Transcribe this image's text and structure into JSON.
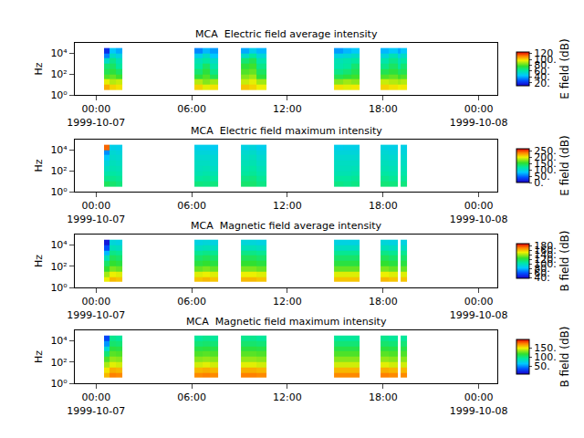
{
  "chart_data": [
    {
      "type": "heatmap",
      "title": "MCA  Electric field average intensity",
      "y_label": "Hz",
      "log": "y",
      "xlim": [
        "1999-10-06 22:40",
        "1999-10-08 01:10"
      ],
      "xticks": [
        {
          "value": "1999-10-07 00:00",
          "label": "00:00\n1999-10-07"
        },
        {
          "value": "1999-10-07 06:00",
          "label": "06:00"
        },
        {
          "value": "1999-10-07 12:00",
          "label": "12:00"
        },
        {
          "value": "1999-10-07 18:00",
          "label": "18:00"
        },
        {
          "value": "1999-10-08 00:00",
          "label": "00:00\n1999-10-08"
        }
      ],
      "ylim": [
        1,
        100000
      ],
      "yticks": [
        {
          "value": 1,
          "label": "10⁰"
        },
        {
          "value": 100,
          "label": "10²"
        },
        {
          "value": 10000,
          "label": "10⁴"
        }
      ],
      "x": [
        "1999-10-07 00:30",
        "1999-10-07 00:50",
        "1999-10-07 01:15",
        "1999-10-07 01:40",
        "1999-10-07 06:10",
        "1999-10-07 06:40",
        "1999-10-07 07:10",
        "1999-10-07 07:40",
        "1999-10-07 09:05",
        "1999-10-07 09:35",
        "1999-10-07 10:05",
        "1999-10-07 10:40",
        "1999-10-07 14:55",
        "1999-10-07 15:30",
        "1999-10-07 16:00",
        "1999-10-07 16:30",
        "1999-10-07 17:50",
        "1999-10-07 18:20",
        "1999-10-07 18:55",
        "1999-10-07 19:05",
        "1999-10-07 19:30"
      ],
      "y": [
        3.2,
        10,
        32,
        100,
        320,
        1000,
        3200,
        10000,
        32000
      ],
      "z": [
        [
          105,
          100,
          98,
          null,
          100,
          95,
          98,
          null,
          102,
          100,
          96,
          null,
          98,
          95,
          97,
          null,
          100,
          98,
          96,
          97
        ],
        [
          95,
          90,
          92,
          null,
          90,
          85,
          88,
          null,
          92,
          95,
          88,
          null,
          85,
          88,
          86,
          null,
          92,
          90,
          88,
          90
        ],
        [
          80,
          82,
          78,
          null,
          75,
          80,
          72,
          null,
          85,
          88,
          75,
          null,
          72,
          75,
          78,
          null,
          80,
          82,
          78,
          80
        ],
        [
          72,
          75,
          70,
          null,
          68,
          75,
          65,
          null,
          80,
          82,
          70,
          null,
          65,
          68,
          72,
          null,
          72,
          75,
          70,
          72
        ],
        [
          68,
          70,
          62,
          null,
          62,
          70,
          60,
          null,
          75,
          78,
          65,
          null,
          60,
          62,
          68,
          null,
          65,
          70,
          62,
          68
        ],
        [
          55,
          65,
          58,
          null,
          58,
          62,
          55,
          null,
          68,
          72,
          60,
          null,
          58,
          60,
          62,
          null,
          60,
          65,
          58,
          62
        ],
        [
          35,
          55,
          50,
          null,
          48,
          55,
          45,
          null,
          55,
          62,
          52,
          null,
          50,
          52,
          55,
          null,
          52,
          58,
          50,
          55
        ],
        [
          20,
          45,
          40,
          null,
          35,
          42,
          38,
          null,
          40,
          48,
          42,
          null,
          38,
          42,
          45,
          null,
          42,
          45,
          40,
          45
        ]
      ],
      "colorbar": {
        "label": "E field (dB)",
        "range": [
          10,
          125
        ],
        "ticks": [
          {
            "value": 20,
            "label": "20."
          },
          {
            "value": 40,
            "label": "40."
          },
          {
            "value": 60,
            "label": "60."
          },
          {
            "value": 80,
            "label": "80."
          },
          {
            "value": 100,
            "label": "100."
          },
          {
            "value": 120,
            "label": "120"
          }
        ]
      }
    },
    {
      "type": "heatmap",
      "title": "MCA  Electric field maximum intensity",
      "y_label": "Hz",
      "log": "y",
      "xlim": [
        "1999-10-06 22:40",
        "1999-10-08 01:10"
      ],
      "xticks": [
        {
          "value": "1999-10-07 00:00",
          "label": "00:00\n1999-10-07"
        },
        {
          "value": "1999-10-07 06:00",
          "label": "06:00"
        },
        {
          "value": "1999-10-07 12:00",
          "label": "12:00"
        },
        {
          "value": "1999-10-07 18:00",
          "label": "18:00"
        },
        {
          "value": "1999-10-08 00:00",
          "label": "00:00\n1999-10-08"
        }
      ],
      "ylim": [
        1,
        100000
      ],
      "yticks": [
        {
          "value": 1,
          "label": "10⁰"
        },
        {
          "value": 100,
          "label": "10²"
        },
        {
          "value": 10000,
          "label": "10⁴"
        }
      ],
      "x": [
        "1999-10-07 00:30",
        "1999-10-07 00:50",
        "1999-10-07 01:15",
        "1999-10-07 01:40",
        "1999-10-07 06:10",
        "1999-10-07 06:40",
        "1999-10-07 07:10",
        "1999-10-07 07:40",
        "1999-10-07 09:05",
        "1999-10-07 09:35",
        "1999-10-07 10:05",
        "1999-10-07 10:40",
        "1999-10-07 14:55",
        "1999-10-07 15:30",
        "1999-10-07 16:00",
        "1999-10-07 16:30",
        "1999-10-07 17:50",
        "1999-10-07 18:20",
        "1999-10-07 18:55",
        "1999-10-07 19:05",
        "1999-10-07 19:30"
      ],
      "y": [
        3.2,
        10,
        32,
        100,
        320,
        1000,
        3200,
        10000,
        32000
      ],
      "z": [
        [
          140,
          135,
          130,
          null,
          130,
          128,
          130,
          null,
          135,
          135,
          128,
          null,
          128,
          125,
          128,
          null,
          132,
          130,
          null,
          130
        ],
        [
          125,
          125,
          122,
          null,
          120,
          122,
          120,
          null,
          128,
          130,
          122,
          null,
          120,
          120,
          122,
          null,
          125,
          122,
          null,
          122
        ],
        [
          115,
          118,
          115,
          null,
          112,
          115,
          112,
          null,
          120,
          122,
          115,
          null,
          112,
          112,
          115,
          null,
          118,
          115,
          null,
          115
        ],
        [
          105,
          112,
          110,
          null,
          108,
          110,
          105,
          null,
          115,
          118,
          110,
          null,
          108,
          108,
          110,
          null,
          112,
          110,
          null,
          110
        ],
        [
          95,
          108,
          105,
          null,
          105,
          105,
          100,
          null,
          110,
          112,
          105,
          null,
          105,
          105,
          105,
          null,
          108,
          105,
          null,
          105
        ],
        [
          80,
          102,
          100,
          null,
          100,
          100,
          98,
          null,
          105,
          108,
          100,
          null,
          100,
          100,
          100,
          null,
          102,
          100,
          null,
          100
        ],
        [
          60,
          98,
          95,
          null,
          95,
          95,
          92,
          null,
          100,
          102,
          95,
          null,
          95,
          95,
          95,
          null,
          98,
          95,
          null,
          95
        ],
        [
          240,
          90,
          88,
          null,
          88,
          88,
          85,
          null,
          92,
          95,
          88,
          null,
          88,
          90,
          90,
          null,
          92,
          90,
          null,
          90
        ]
      ],
      "colorbar": {
        "label": "E field (dB)",
        "range": [
          0,
          265
        ],
        "ticks": [
          {
            "value": 0,
            "label": "0."
          },
          {
            "value": 50,
            "label": "50."
          },
          {
            "value": 100,
            "label": "100."
          },
          {
            "value": 150,
            "label": "150."
          },
          {
            "value": 200,
            "label": "200."
          },
          {
            "value": 250,
            "label": "250."
          }
        ]
      }
    },
    {
      "type": "heatmap",
      "title": "MCA  Magnetic field average intensity",
      "y_label": "Hz",
      "log": "y",
      "xlim": [
        "1999-10-06 22:40",
        "1999-10-08 01:10"
      ],
      "xticks": [
        {
          "value": "1999-10-07 00:00",
          "label": "00:00\n1999-10-07"
        },
        {
          "value": "1999-10-07 06:00",
          "label": "06:00"
        },
        {
          "value": "1999-10-07 12:00",
          "label": "12:00"
        },
        {
          "value": "1999-10-07 18:00",
          "label": "18:00"
        },
        {
          "value": "1999-10-08 00:00",
          "label": "00:00\n1999-10-08"
        }
      ],
      "ylim": [
        1,
        100000
      ],
      "yticks": [
        {
          "value": 1,
          "label": "10⁰"
        },
        {
          "value": 100,
          "label": "10²"
        },
        {
          "value": 10000,
          "label": "10⁴"
        }
      ],
      "x": [
        "1999-10-07 00:30",
        "1999-10-07 00:50",
        "1999-10-07 01:15",
        "1999-10-07 01:40",
        "1999-10-07 06:10",
        "1999-10-07 06:40",
        "1999-10-07 07:10",
        "1999-10-07 07:40",
        "1999-10-07 09:05",
        "1999-10-07 09:35",
        "1999-10-07 10:05",
        "1999-10-07 10:40",
        "1999-10-07 14:55",
        "1999-10-07 15:30",
        "1999-10-07 16:00",
        "1999-10-07 16:30",
        "1999-10-07 17:50",
        "1999-10-07 18:20",
        "1999-10-07 18:55",
        "1999-10-07 19:05",
        "1999-10-07 19:30"
      ],
      "y": [
        3.2,
        10,
        32,
        100,
        320,
        1000,
        3200,
        10000,
        32000
      ],
      "z": [
        [
          150,
          160,
          158,
          null,
          158,
          160,
          158,
          null,
          160,
          160,
          158,
          null,
          158,
          158,
          158,
          null,
          160,
          158,
          null,
          158
        ],
        [
          140,
          150,
          148,
          null,
          148,
          150,
          148,
          null,
          150,
          150,
          148,
          null,
          148,
          148,
          148,
          null,
          150,
          148,
          null,
          148
        ],
        [
          125,
          135,
          132,
          null,
          132,
          135,
          132,
          null,
          135,
          135,
          132,
          null,
          132,
          132,
          132,
          null,
          135,
          132,
          null,
          132
        ],
        [
          115,
          125,
          122,
          null,
          122,
          125,
          122,
          null,
          125,
          125,
          122,
          null,
          122,
          122,
          122,
          null,
          125,
          122,
          null,
          122
        ],
        [
          100,
          118,
          115,
          null,
          115,
          118,
          115,
          null,
          118,
          118,
          115,
          null,
          115,
          115,
          115,
          null,
          118,
          115,
          null,
          115
        ],
        [
          80,
          110,
          108,
          null,
          108,
          110,
          108,
          null,
          110,
          110,
          108,
          null,
          108,
          108,
          108,
          null,
          110,
          108,
          null,
          108
        ],
        [
          60,
          100,
          98,
          null,
          98,
          100,
          98,
          null,
          100,
          100,
          98,
          null,
          98,
          98,
          98,
          null,
          100,
          98,
          null,
          98
        ],
        [
          45,
          92,
          90,
          null,
          90,
          92,
          90,
          null,
          92,
          92,
          90,
          null,
          90,
          90,
          90,
          null,
          92,
          90,
          null,
          90
        ]
      ],
      "colorbar": {
        "label": "B field (dB)",
        "range": [
          38,
          188
        ],
        "ticks": [
          {
            "value": 40,
            "label": "40."
          },
          {
            "value": 60,
            "label": "60."
          },
          {
            "value": 80,
            "label": "80."
          },
          {
            "value": 100,
            "label": "100."
          },
          {
            "value": 120,
            "label": "120."
          },
          {
            "value": 140,
            "label": "140."
          },
          {
            "value": 160,
            "label": "160."
          },
          {
            "value": 180,
            "label": "180."
          }
        ]
      }
    },
    {
      "type": "heatmap",
      "title": "MCA  Magnetic field maximum intensity",
      "y_label": "Hz",
      "log": "y",
      "xlim": [
        "1999-10-06 22:40",
        "1999-10-08 01:10"
      ],
      "xticks": [
        {
          "value": "1999-10-07 00:00",
          "label": "00:00\n1999-10-07"
        },
        {
          "value": "1999-10-07 06:00",
          "label": "06:00"
        },
        {
          "value": "1999-10-07 12:00",
          "label": "12:00"
        },
        {
          "value": "1999-10-07 18:00",
          "label": "18:00"
        },
        {
          "value": "1999-10-08 00:00",
          "label": "00:00\n1999-10-08"
        }
      ],
      "ylim": [
        1,
        100000
      ],
      "yticks": [
        {
          "value": 1,
          "label": "10⁰"
        },
        {
          "value": 100,
          "label": "10²"
        },
        {
          "value": 10000,
          "label": "10⁴"
        }
      ],
      "x": [
        "1999-10-07 00:30",
        "1999-10-07 00:50",
        "1999-10-07 01:15",
        "1999-10-07 01:40",
        "1999-10-07 06:10",
        "1999-10-07 06:40",
        "1999-10-07 07:10",
        "1999-10-07 07:40",
        "1999-10-07 09:05",
        "1999-10-07 09:35",
        "1999-10-07 10:05",
        "1999-10-07 10:40",
        "1999-10-07 14:55",
        "1999-10-07 15:30",
        "1999-10-07 16:00",
        "1999-10-07 16:30",
        "1999-10-07 17:50",
        "1999-10-07 18:20",
        "1999-10-07 18:55",
        "1999-10-07 19:05",
        "1999-10-07 19:30"
      ],
      "y": [
        3.2,
        10,
        32,
        100,
        320,
        1000,
        3200,
        10000,
        32000
      ],
      "z": [
        [
          160,
          172,
          170,
          null,
          170,
          172,
          170,
          null,
          172,
          172,
          170,
          null,
          170,
          170,
          170,
          null,
          172,
          170,
          null,
          170
        ],
        [
          150,
          162,
          160,
          null,
          160,
          162,
          160,
          null,
          162,
          162,
          160,
          null,
          160,
          160,
          160,
          null,
          162,
          160,
          null,
          160
        ],
        [
          135,
          145,
          142,
          null,
          142,
          145,
          142,
          null,
          145,
          145,
          142,
          null,
          142,
          142,
          142,
          null,
          145,
          142,
          null,
          142
        ],
        [
          120,
          132,
          130,
          null,
          130,
          132,
          130,
          null,
          132,
          132,
          130,
          null,
          130,
          130,
          130,
          null,
          132,
          130,
          null,
          130
        ],
        [
          100,
          122,
          120,
          null,
          120,
          122,
          120,
          null,
          122,
          122,
          120,
          null,
          120,
          120,
          120,
          null,
          122,
          120,
          null,
          120
        ],
        [
          75,
          112,
          110,
          null,
          110,
          112,
          110,
          null,
          112,
          112,
          110,
          null,
          110,
          110,
          110,
          null,
          112,
          110,
          null,
          110
        ],
        [
          50,
          102,
          100,
          null,
          100,
          102,
          100,
          null,
          102,
          102,
          100,
          null,
          100,
          100,
          100,
          null,
          102,
          100,
          null,
          100
        ],
        [
          30,
          95,
          92,
          null,
          92,
          95,
          92,
          null,
          95,
          95,
          92,
          null,
          92,
          92,
          92,
          null,
          95,
          92,
          null,
          92
        ]
      ],
      "colorbar": {
        "label": "B field (dB)",
        "range": [
          5,
          195
        ],
        "ticks": [
          {
            "value": 50,
            "label": "50."
          },
          {
            "value": 100,
            "label": "100."
          },
          {
            "value": 150,
            "label": "150."
          }
        ]
      }
    }
  ]
}
